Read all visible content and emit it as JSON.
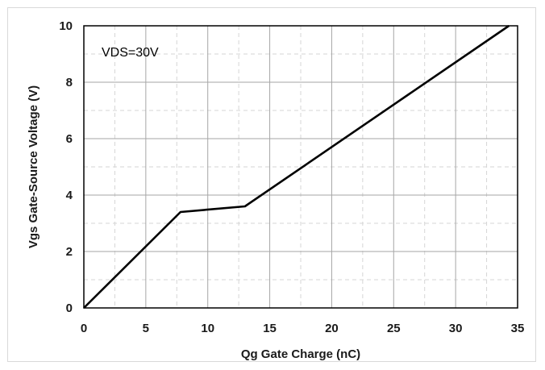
{
  "chart_data": {
    "type": "line",
    "title": "",
    "xlabel": "Qg Gate Charge (nC)",
    "ylabel": "Vgs Gate-Source Voltage (V)",
    "xlim": [
      0,
      35
    ],
    "ylim": [
      0,
      10
    ],
    "xticks": [
      0,
      5,
      10,
      15,
      20,
      25,
      30,
      35
    ],
    "yticks": [
      0,
      2,
      4,
      6,
      8,
      10
    ],
    "grid": true,
    "minor_grid": "dashed",
    "annotation": "VDS=30V",
    "series": [
      {
        "color": "#000000",
        "points": [
          [
            0,
            0
          ],
          [
            7.8,
            3.4
          ],
          [
            13,
            3.6
          ],
          [
            34.3,
            10
          ]
        ]
      }
    ]
  }
}
